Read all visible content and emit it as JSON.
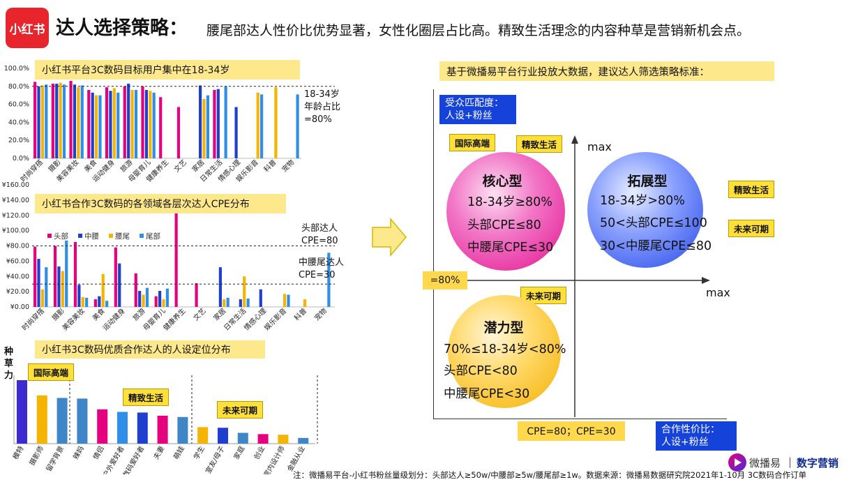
{
  "header": {
    "logo_text": "小红书",
    "title": "达人选择策略：",
    "subtitle": "腰尾部达人性价比优势显著，女性化圈层占比高。精致生活理念的内容种草是营销新机会点。"
  },
  "chart_data": [
    {
      "type": "bar",
      "title": "小红书平台3C数码目标用户集中在18-34岁",
      "categories": [
        "时尚穿搭",
        "摄影",
        "美容美妆",
        "美食",
        "运动健身",
        "旅游",
        "母婴育儿",
        "健康养生",
        "文艺",
        "家居",
        "日常生活",
        "情感心理",
        "娱乐影音",
        "科普",
        "宠物"
      ],
      "series": [
        {
          "color": "#e6007e",
          "values": [
            85,
            83,
            86,
            76,
            79,
            80,
            80,
            68,
            57,
            null,
            76,
            null,
            null,
            null,
            null
          ]
        },
        {
          "color": "#1f3fd1",
          "values": [
            80,
            83,
            82,
            73,
            75,
            83,
            76,
            null,
            null,
            81,
            77,
            57,
            null,
            null,
            null
          ]
        },
        {
          "color": "#f5b400",
          "values": [
            81,
            84,
            79,
            70,
            78,
            76,
            75,
            null,
            null,
            66,
            null,
            null,
            73,
            79,
            null
          ]
        },
        {
          "color": "#2f8fe8",
          "values": [
            82,
            82,
            81,
            70,
            73,
            76,
            73,
            null,
            null,
            70,
            80,
            null,
            71,
            null,
            71
          ]
        }
      ],
      "yticks": [
        "0.0%",
        "20.0%",
        "40.0%",
        "60.0%",
        "80.0%",
        "100.0%"
      ],
      "ylim": [
        0,
        100
      ],
      "ref_line": 80,
      "annotation": "18-34岁\n年龄占比\n=80%"
    },
    {
      "type": "bar",
      "title": "小红书合作3C数码的各领域各层次达人CPE分布",
      "categories": [
        "时尚穿搭",
        "摄影",
        "美容美妆",
        "美食",
        "运动健身",
        "旅游",
        "母婴育儿",
        "健康养生",
        "文艺",
        "家居",
        "日常生活",
        "情感心理",
        "娱乐影音",
        "科普",
        "宠物"
      ],
      "series": [
        {
          "name": "头部",
          "color": "#e6007e",
          "values": [
            79,
            80,
            85,
            10,
            78,
            44,
            14,
            124,
            31,
            null,
            null,
            null,
            null,
            null,
            null
          ]
        },
        {
          "name": "中腰",
          "color": "#1f3fd1",
          "values": [
            63,
            53,
            29,
            14,
            57,
            21,
            21,
            null,
            null,
            52,
            10,
            23,
            null,
            null,
            null
          ]
        },
        {
          "name": "腰尾",
          "color": "#f5b400",
          "values": [
            23,
            47,
            13,
            43,
            null,
            16,
            10,
            null,
            null,
            10,
            40,
            null,
            17,
            10,
            null
          ]
        },
        {
          "name": "尾部",
          "color": "#2f8fe8",
          "values": [
            52,
            87,
            12,
            8,
            null,
            25,
            24,
            null,
            null,
            12,
            11,
            null,
            16,
            null,
            71
          ]
        }
      ],
      "yticks": [
        "¥0.00",
        "¥20.00",
        "¥40.00",
        "¥60.00",
        "¥80.00",
        "¥100.00",
        "¥120.00",
        "¥140.00",
        "¥160.00"
      ],
      "ylim": [
        0,
        160
      ],
      "ref_lines": [
        80,
        30
      ],
      "annotations": [
        "头部达人\nCPE=80",
        "中腰尾达人\nCPE=30"
      ]
    },
    {
      "type": "bar",
      "title": "小红书3C数码优质合作达人的人设定位分布",
      "ylabel": "种草力",
      "categories": [
        "模特",
        "摄影师",
        "留学背景",
        "辣妈",
        "情侣",
        "户外爱好者",
        "数码爱好者",
        "夫妻",
        "萌娃",
        "学生",
        "室友/母子",
        "家庭",
        "创业",
        "室内设计师",
        "金融从业"
      ],
      "colors": [
        "#3b2bd0",
        "#f5b400",
        "#3f86c8",
        "#3f86c8",
        "#e6007e",
        "#2f8fe8",
        "#1f3fd1",
        "#e6007e",
        "#3f86c8",
        "#f5b400",
        "#1f3fd1",
        "#3f86c8",
        "#e6007e",
        "#f5b400",
        "#3f86c8"
      ],
      "values": [
        100,
        76,
        72,
        71,
        54,
        50,
        49,
        44,
        42,
        26,
        25,
        17,
        15,
        14,
        9
      ],
      "ylim": [
        0,
        100
      ],
      "groups": [
        "国际高端",
        "精致生活",
        "未来可期"
      ]
    }
  ],
  "right": {
    "header": "基于微播易平台行业投放大数据，建议达人筛选策略标准：",
    "y_axis_box": "受众匹配度：\n人设+粉丝",
    "x_axis_box": "合作性价比：\n人设+粉丝",
    "y_max": "max",
    "x_max": "max",
    "y_threshold": "=80%",
    "x_threshold": "CPE=80；CPE=30",
    "tags": {
      "intl": "国际高端",
      "refined1": "精致生活",
      "refined2": "精致生活",
      "future1": "未来可期",
      "future2": "未来可期"
    },
    "core": {
      "title": "核心型",
      "l1": "18-34岁≥80%",
      "l2": "头部CPE≤80",
      "l3": "中腰尾CPE≤30"
    },
    "expand": {
      "title": "拓展型",
      "l1": "18-34岁>80%",
      "l2": "50<头部CPE≤100",
      "l3": "30<中腰尾CPE≤80"
    },
    "potential": {
      "title": "潜力型",
      "l1": "70%≤18-34岁<80%",
      "l2": "头部CPE<80",
      "l3": "中腰尾CPE<30"
    }
  },
  "brand": {
    "name": "微播易",
    "separator": "|",
    "tagline": "数字营销"
  },
  "footer": "注：微播易平台-小红书粉丝量级划分：头部达人≥50w/中腰部≥5w/腰尾部≥1w。数据来源：微播易数据研究院2021年1-10月 3C数码合作订单"
}
